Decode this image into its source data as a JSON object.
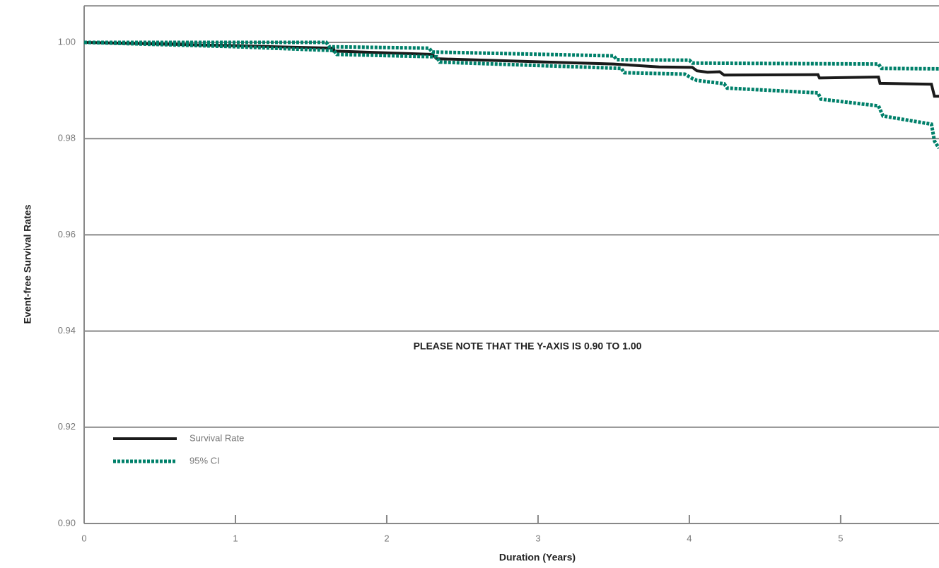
{
  "chart_data": {
    "type": "line",
    "annotation": "PLEASE NOTE THAT THE Y-AXIS IS 0.90 TO 1.00",
    "x_label": "Duration (Years)",
    "y_label": "Event-free Survival Rates",
    "xlim": [
      0,
      5.65
    ],
    "ylim": [
      0.9,
      1.0076
    ],
    "xticks": [
      0,
      1,
      2,
      3,
      4,
      5
    ],
    "yticks": [
      {
        "value": 0.9,
        "label": "0.90"
      },
      {
        "value": 0.92,
        "label": "0.92"
      },
      {
        "value": 0.94,
        "label": "0.94"
      },
      {
        "value": 0.96,
        "label": "0.96"
      },
      {
        "value": 0.98,
        "label": "0.98"
      },
      {
        "value": 1.0,
        "label": "1.00"
      }
    ],
    "grid": true,
    "legend": "lower left",
    "series": [
      {
        "name": "Survival Rate",
        "color": "#1a1a1a",
        "style": "solid",
        "lines": [
          {
            "x": [
              0,
              1.0,
              1.65,
              1.65,
              2.3,
              2.33,
              3.5,
              3.8,
              4.02,
              4.05,
              4.12,
              4.2,
              4.23,
              4.85,
              4.86,
              5.25,
              5.26,
              5.6,
              5.62,
              5.65
            ],
            "values": [
              1.0,
              0.9993,
              0.9988,
              0.9982,
              0.9975,
              0.9966,
              0.9955,
              0.9949,
              0.9948,
              0.9941,
              0.9938,
              0.9939,
              0.9932,
              0.9933,
              0.9926,
              0.9928,
              0.9915,
              0.9913,
              0.9888,
              0.9888
            ]
          }
        ]
      },
      {
        "name": "95% CI",
        "color": "#00806a",
        "style": "dotted",
        "lines": [
          {
            "x": [
              0,
              1.6,
              1.62,
              2.28,
              2.3,
              3.5,
              3.52,
              4.0,
              4.02,
              5.25,
              5.27,
              5.65
            ],
            "values": [
              1.0,
              1.0,
              0.9991,
              0.9988,
              0.998,
              0.9972,
              0.9964,
              0.9963,
              0.9957,
              0.9955,
              0.9946,
              0.9945
            ]
          },
          {
            "x": [
              0,
              1.0,
              1.65,
              1.67,
              2.33,
              2.35,
              3.55,
              3.57,
              3.97,
              4.02,
              4.05,
              4.23,
              4.25,
              4.85,
              4.87,
              5.25,
              5.28,
              5.6,
              5.62,
              5.65
            ],
            "values": [
              1.0,
              0.9991,
              0.9983,
              0.9975,
              0.997,
              0.9959,
              0.9946,
              0.9937,
              0.9934,
              0.9925,
              0.9921,
              0.9914,
              0.9905,
              0.9895,
              0.9882,
              0.9868,
              0.9847,
              0.983,
              0.9795,
              0.978
            ]
          }
        ]
      }
    ]
  }
}
